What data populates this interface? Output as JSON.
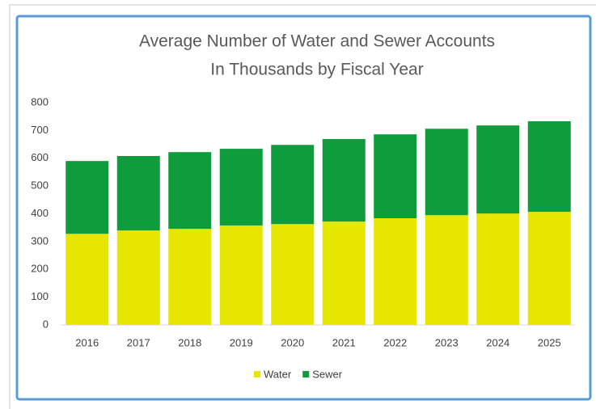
{
  "chart_data": {
    "type": "stacked_bar",
    "title": [
      "Average Number of Water and Sewer Accounts",
      "In Thousands by Fiscal Year"
    ],
    "categories": [
      "2016",
      "2017",
      "2018",
      "2019",
      "2020",
      "2021",
      "2022",
      "2023",
      "2024",
      "2025"
    ],
    "series": [
      {
        "name": "Water",
        "color": "#e6e600",
        "values": [
          328,
          340,
          346,
          358,
          363,
          372,
          384,
          395,
          401,
          407
        ]
      },
      {
        "name": "Sewer",
        "color": "#0e9c3c",
        "values": [
          262,
          268,
          276,
          276,
          285,
          297,
          302,
          311,
          317,
          326
        ]
      }
    ],
    "ylim": [
      0,
      800
    ],
    "yticks": [
      0,
      100,
      200,
      300,
      400,
      500,
      600,
      700,
      800
    ],
    "grid": false,
    "legend": "bottom"
  }
}
